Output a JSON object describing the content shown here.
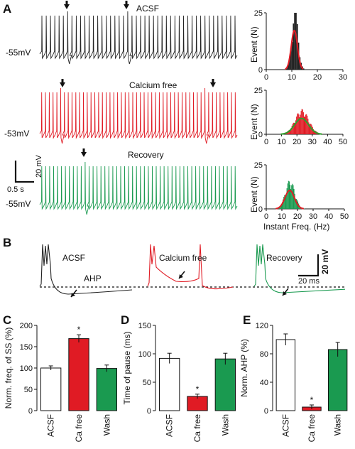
{
  "panels": {
    "a": "A",
    "b": "B",
    "c": "C",
    "d": "D",
    "e": "E"
  },
  "traces": [
    {
      "name": "ACSF",
      "rmp": "-55mV",
      "color": "#222222"
    },
    {
      "name": "Calcium free",
      "rmp": "-53mV",
      "color": "#e01b24"
    },
    {
      "name": "Recovery",
      "rmp": "-55mV",
      "color": "#1a9a50"
    }
  ],
  "scalebar_a": {
    "voltage": "20 mV",
    "time": "0.5 s"
  },
  "histograms": {
    "ylabel": "Event (N)",
    "xlabel": "Instant Freq. (Hz)",
    "fit_color": "#2ca02c",
    "charts": [
      {
        "ymax": 25,
        "yticks": [
          0,
          25
        ],
        "xticks": [
          0,
          10,
          20,
          30
        ],
        "peak_hz": 11,
        "peak_n": 23,
        "bar_color": "#222222",
        "fit_color": "#e01b24"
      },
      {
        "ymax": 25,
        "yticks": [
          0,
          25
        ],
        "xticks": [
          0,
          10,
          20,
          30,
          40,
          50
        ],
        "peak_hz": 23,
        "peak_n": 12,
        "bar_color": "#e01b24",
        "fit_color": "#2ca02c"
      },
      {
        "ymax": 25,
        "yticks": [
          0,
          25
        ],
        "xticks": [
          0,
          10,
          20,
          30,
          40,
          50
        ],
        "peak_hz": 15,
        "peak_n": 14,
        "bar_color": "#1a9a50",
        "fit_color": "#e01b24"
      }
    ]
  },
  "panel_b": {
    "labels": [
      "ACSF",
      "Calcium free",
      "Recovery"
    ],
    "ahp_label": "AHP",
    "scale_v": "20 mV",
    "scale_t": "20 ms"
  },
  "chart_data": [
    {
      "type": "bar",
      "panel": "C",
      "ylabel": "Norm. freq. of SS (%)",
      "ylim": [
        0,
        200
      ],
      "yticks": [
        0,
        50,
        100,
        150,
        200
      ],
      "categories": [
        "ACSF",
        "Ca free",
        "Wash"
      ],
      "values": [
        100,
        169,
        99
      ],
      "errors": [
        5,
        9,
        8
      ],
      "colors": [
        "#ffffff",
        "#e01b24",
        "#1a9a50"
      ],
      "significance": [
        "",
        "*",
        ""
      ]
    },
    {
      "type": "bar",
      "panel": "D",
      "ylabel": "Time of pause (ms)",
      "ylim": [
        0,
        150
      ],
      "yticks": [
        0,
        50,
        100,
        150
      ],
      "categories": [
        "ACSF",
        "Ca free",
        "Wash"
      ],
      "values": [
        92,
        25,
        91
      ],
      "errors": [
        9,
        4,
        10
      ],
      "colors": [
        "#ffffff",
        "#e01b24",
        "#1a9a50"
      ],
      "significance": [
        "",
        "*",
        ""
      ]
    },
    {
      "type": "bar",
      "panel": "E",
      "ylabel": "Norm. AHP (%)",
      "ylim": [
        0,
        120
      ],
      "yticks": [
        0,
        40,
        80,
        120
      ],
      "categories": [
        "ACSF",
        "Ca free",
        "Wash"
      ],
      "values": [
        100,
        5,
        86
      ],
      "errors": [
        8,
        3,
        10
      ],
      "colors": [
        "#ffffff",
        "#e01b24",
        "#1a9a50"
      ],
      "significance": [
        "",
        "*",
        ""
      ]
    }
  ]
}
